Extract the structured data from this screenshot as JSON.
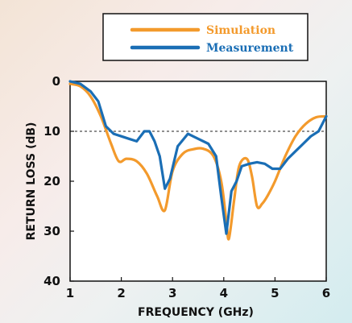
{
  "chart_data": {
    "type": "line",
    "xlabel": "FREQUENCY (GHz)",
    "ylabel": "RETURN LOSS (dB)",
    "xlim": [
      1,
      6
    ],
    "ylim": [
      0,
      40
    ],
    "y_inverted": true,
    "x_ticks": [
      "1",
      "2",
      "3",
      "4",
      "5",
      "6"
    ],
    "y_ticks": [
      "0",
      "10",
      "20",
      "30",
      "40"
    ],
    "reference_line": {
      "y": 10,
      "style": "dashed"
    },
    "grid": false,
    "legend_position": "top-right",
    "series": [
      {
        "name": "Simulation",
        "color": "#f39a2c",
        "x": [
          1.0,
          1.2,
          1.4,
          1.6,
          1.8,
          1.95,
          2.1,
          2.3,
          2.5,
          2.7,
          2.85,
          3.0,
          3.2,
          3.4,
          3.6,
          3.8,
          3.95,
          4.05,
          4.1,
          4.2,
          4.3,
          4.45,
          4.55,
          4.65,
          4.75,
          4.85,
          5.0,
          5.2,
          5.4,
          5.6,
          5.8,
          6.0
        ],
        "y": [
          0.5,
          1.0,
          3.0,
          7.0,
          12.5,
          16.0,
          15.5,
          16.0,
          18.5,
          23.0,
          25.8,
          18.0,
          14.5,
          13.6,
          13.5,
          15.0,
          20.0,
          28.0,
          31.5,
          24.0,
          17.0,
          15.5,
          19.0,
          25.0,
          24.5,
          23.0,
          20.0,
          15.0,
          11.0,
          8.5,
          7.2,
          7.0
        ]
      },
      {
        "name": "Measurement",
        "color": "#1a6eb5",
        "x": [
          1.0,
          1.2,
          1.4,
          1.55,
          1.7,
          1.85,
          2.0,
          2.15,
          2.3,
          2.45,
          2.55,
          2.65,
          2.75,
          2.85,
          2.95,
          3.1,
          3.3,
          3.5,
          3.7,
          3.85,
          3.95,
          4.05,
          4.15,
          4.25,
          4.35,
          4.5,
          4.65,
          4.8,
          4.95,
          5.1,
          5.25,
          5.4,
          5.55,
          5.7,
          5.85,
          6.0
        ],
        "y": [
          0.0,
          0.5,
          2.0,
          4.0,
          9.0,
          10.5,
          11.0,
          11.5,
          12.0,
          10.0,
          10.0,
          12.0,
          15.0,
          21.5,
          19.5,
          13.0,
          10.5,
          11.5,
          12.5,
          15.0,
          23.0,
          30.5,
          22.0,
          20.0,
          17.0,
          16.5,
          16.2,
          16.5,
          17.5,
          17.5,
          15.5,
          14.0,
          12.5,
          11.0,
          10.0,
          7.0
        ]
      }
    ]
  }
}
